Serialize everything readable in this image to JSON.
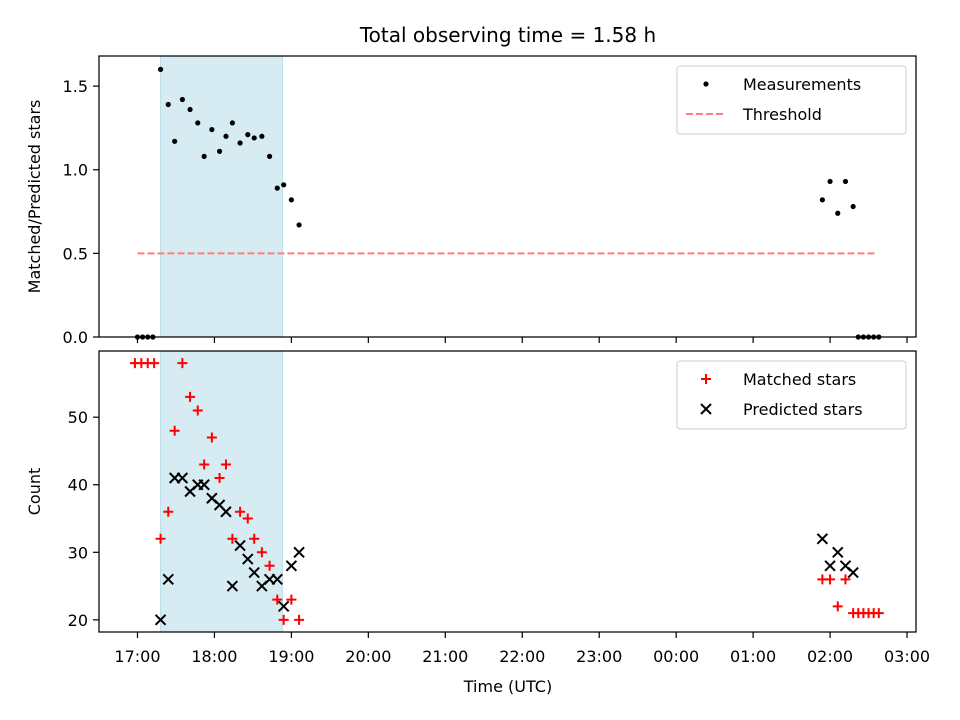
{
  "chart_data": {
    "title": "Total observing time = 1.58 h",
    "x_tick_labels": [
      "17:00",
      "18:00",
      "19:00",
      "20:00",
      "21:00",
      "22:00",
      "23:00",
      "00:00",
      "01:00",
      "02:00",
      "03:00"
    ],
    "xlabel": "Time (UTC)",
    "xlim": [
      "16:30",
      "03:07"
    ],
    "shaded_interval": [
      "17:18",
      "18:53"
    ],
    "panels": [
      {
        "type": "scatter",
        "ylabel": "Matched/Predicted stars",
        "ylim": [
          0,
          1.68
        ],
        "y_ticks": [
          0.0,
          0.5,
          1.0,
          1.5
        ],
        "y_tick_labels": [
          "0.0",
          "0.5",
          "1.0",
          "1.5"
        ],
        "legend": {
          "placement": "top-right",
          "entries": [
            {
              "label": "Measurements",
              "marker": "dot",
              "color": "#000000"
            },
            {
              "label": "Threshold",
              "marker": "dashed-line",
              "color": "#ff7f7f"
            }
          ]
        },
        "threshold": {
          "y": 0.5,
          "x_start": "17:00",
          "x_end": "02:37",
          "color": "#ff7f7f"
        },
        "series": [
          {
            "name": "Measurements",
            "color": "#000000",
            "points": [
              [
                "17:00",
                0.0
              ],
              [
                "17:04",
                0.0
              ],
              [
                "17:08",
                0.0
              ],
              [
                "17:12",
                0.0
              ],
              [
                "17:18",
                1.6
              ],
              [
                "17:24",
                1.39
              ],
              [
                "17:29",
                1.17
              ],
              [
                "17:35",
                1.42
              ],
              [
                "17:41",
                1.36
              ],
              [
                "17:47",
                1.28
              ],
              [
                "17:52",
                1.08
              ],
              [
                "17:58",
                1.24
              ],
              [
                "18:04",
                1.11
              ],
              [
                "18:09",
                1.2
              ],
              [
                "18:14",
                1.28
              ],
              [
                "18:20",
                1.16
              ],
              [
                "18:26",
                1.21
              ],
              [
                "18:31",
                1.19
              ],
              [
                "18:37",
                1.2
              ],
              [
                "18:43",
                1.08
              ],
              [
                "18:49",
                0.89
              ],
              [
                "18:54",
                0.91
              ],
              [
                "19:00",
                0.82
              ],
              [
                "19:06",
                0.67
              ],
              [
                "01:54",
                0.82
              ],
              [
                "02:00",
                0.93
              ],
              [
                "02:06",
                0.74
              ],
              [
                "02:12",
                0.93
              ],
              [
                "02:18",
                0.78
              ],
              [
                "02:22",
                0.0
              ],
              [
                "02:26",
                0.0
              ],
              [
                "02:30",
                0.0
              ],
              [
                "02:34",
                0.0
              ],
              [
                "02:38",
                0.0
              ]
            ]
          }
        ]
      },
      {
        "type": "scatter",
        "ylabel": "Count",
        "ylim": [
          18.2,
          59.8
        ],
        "y_ticks": [
          20,
          30,
          40,
          50
        ],
        "y_tick_labels": [
          "20",
          "30",
          "40",
          "50"
        ],
        "legend": {
          "placement": "top-right",
          "entries": [
            {
              "label": "Matched stars",
              "marker": "plus",
              "color": "#ff0000"
            },
            {
              "label": "Predicted stars",
              "marker": "x",
              "color": "#000000"
            }
          ]
        },
        "series": [
          {
            "name": "Matched stars",
            "color": "#ff0000",
            "points": [
              [
                "16:58",
                58
              ],
              [
                "17:03",
                58
              ],
              [
                "17:08",
                58
              ],
              [
                "17:13",
                58
              ],
              [
                "17:18",
                32
              ],
              [
                "17:24",
                36
              ],
              [
                "17:29",
                48
              ],
              [
                "17:35",
                58
              ],
              [
                "17:41",
                53
              ],
              [
                "17:47",
                51
              ],
              [
                "17:52",
                43
              ],
              [
                "17:58",
                47
              ],
              [
                "18:04",
                41
              ],
              [
                "18:09",
                43
              ],
              [
                "18:14",
                32
              ],
              [
                "18:20",
                36
              ],
              [
                "18:26",
                35
              ],
              [
                "18:31",
                32
              ],
              [
                "18:37",
                30
              ],
              [
                "18:43",
                28
              ],
              [
                "18:49",
                23
              ],
              [
                "18:54",
                20
              ],
              [
                "19:00",
                23
              ],
              [
                "19:06",
                20
              ],
              [
                "01:54",
                26
              ],
              [
                "02:00",
                26
              ],
              [
                "02:06",
                22
              ],
              [
                "02:12",
                26
              ],
              [
                "02:18",
                21
              ],
              [
                "02:22",
                21
              ],
              [
                "02:26",
                21
              ],
              [
                "02:30",
                21
              ],
              [
                "02:34",
                21
              ],
              [
                "02:38",
                21
              ]
            ]
          },
          {
            "name": "Predicted stars",
            "color": "#000000",
            "points": [
              [
                "17:18",
                20
              ],
              [
                "17:24",
                26
              ],
              [
                "17:29",
                41
              ],
              [
                "17:35",
                41
              ],
              [
                "17:41",
                39
              ],
              [
                "17:47",
                40
              ],
              [
                "17:52",
                40
              ],
              [
                "17:58",
                38
              ],
              [
                "18:04",
                37
              ],
              [
                "18:09",
                36
              ],
              [
                "18:14",
                25
              ],
              [
                "18:20",
                31
              ],
              [
                "18:26",
                29
              ],
              [
                "18:31",
                27
              ],
              [
                "18:37",
                25
              ],
              [
                "18:43",
                26
              ],
              [
                "18:49",
                26
              ],
              [
                "18:54",
                22
              ],
              [
                "19:00",
                28
              ],
              [
                "19:06",
                30
              ],
              [
                "01:54",
                32
              ],
              [
                "02:00",
                28
              ],
              [
                "02:06",
                30
              ],
              [
                "02:12",
                28
              ],
              [
                "02:18",
                27
              ]
            ]
          }
        ]
      }
    ]
  }
}
